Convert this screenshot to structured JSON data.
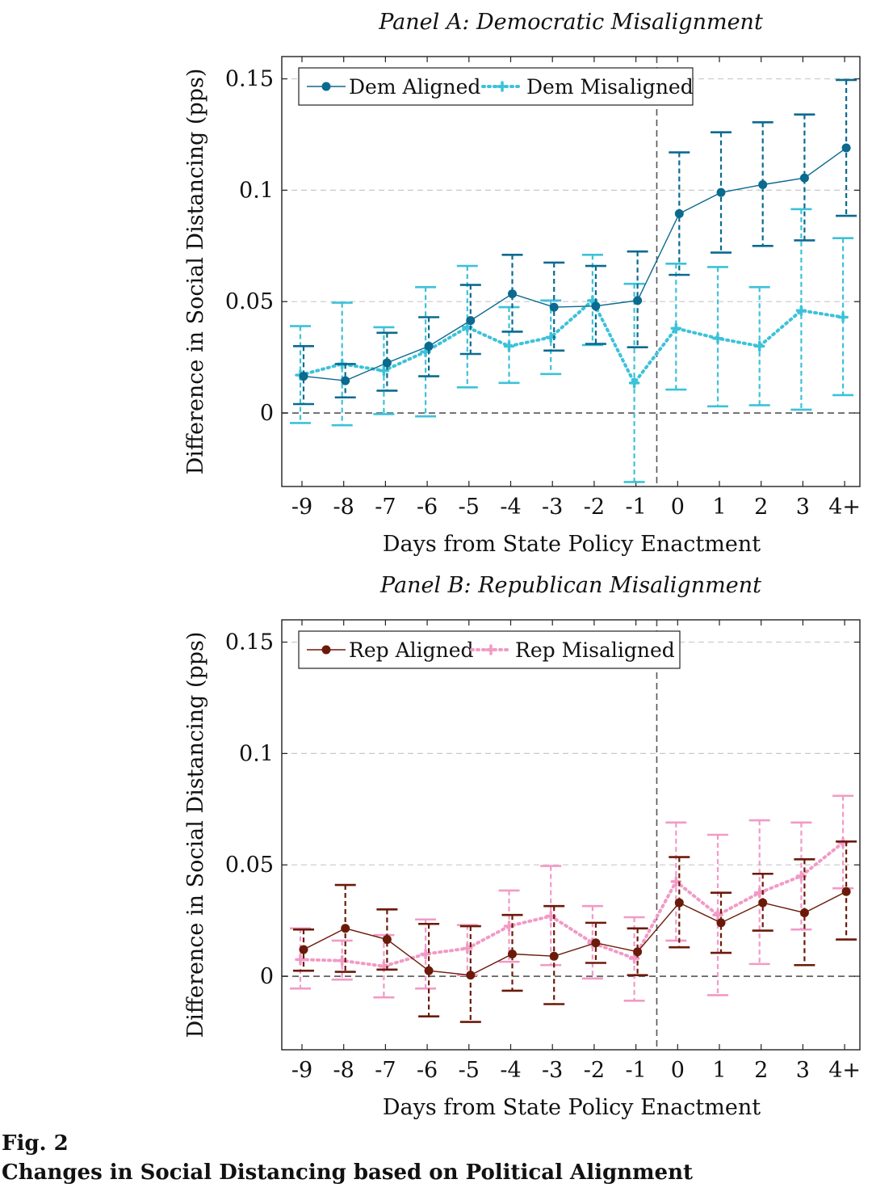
{
  "figure": {
    "label": "Fig. 2",
    "title": "Changes in Social Distancing based on Political Alignment"
  },
  "chart_data": [
    {
      "type": "line",
      "title": "Panel A: Democratic Misalignment",
      "xlabel": "Days from State Policy Enactment",
      "ylabel": "Difference in Social Distancing (pps)",
      "categories": [
        "-9",
        "-8",
        "-7",
        "-6",
        "-5",
        "-4",
        "-3",
        "-2",
        "-1",
        "0",
        "1",
        "2",
        "3",
        "4+"
      ],
      "yticks": [
        "0",
        "0.05",
        "0.1",
        "0.15"
      ],
      "ylim": [
        -0.033,
        0.16
      ],
      "grid": "horizontal dashed",
      "legend_position": "top-left",
      "reference_lines": {
        "y": 0,
        "x_between": [
          "-1",
          "0"
        ]
      },
      "colors": {
        "aligned": "#0b6a8f",
        "misaligned": "#3cc2d9"
      },
      "series": [
        {
          "name": "Dem Aligned",
          "style": "solid",
          "values": [
            0.0165,
            0.0145,
            0.0225,
            0.03,
            0.0415,
            0.0535,
            0.0475,
            0.048,
            0.0505,
            0.0895,
            0.099,
            0.1025,
            0.1055,
            0.119
          ],
          "lower": [
            0.004,
            0.007,
            0.01,
            0.0165,
            0.0265,
            0.0365,
            0.028,
            0.031,
            0.0295,
            0.062,
            0.072,
            0.075,
            0.0775,
            0.0885
          ],
          "upper": [
            0.03,
            0.022,
            0.036,
            0.043,
            0.0575,
            0.071,
            0.0675,
            0.066,
            0.0725,
            0.117,
            0.126,
            0.1305,
            0.134,
            0.1495
          ]
        },
        {
          "name": "Dem Misaligned",
          "style": "dotted",
          "values": [
            0.017,
            0.022,
            0.019,
            0.0275,
            0.0385,
            0.03,
            0.034,
            0.0505,
            0.0135,
            0.038,
            0.0335,
            0.03,
            0.046,
            0.043
          ],
          "lower": [
            -0.0045,
            -0.0055,
            -0.0005,
            -0.0015,
            0.0115,
            0.0135,
            0.0175,
            0.0305,
            -0.031,
            0.0105,
            0.003,
            0.0035,
            0.0015,
            0.008
          ],
          "upper": [
            0.039,
            0.0495,
            0.0385,
            0.0565,
            0.066,
            0.0475,
            0.0505,
            0.071,
            0.058,
            0.067,
            0.0655,
            0.0565,
            0.0915,
            0.0785
          ]
        }
      ]
    },
    {
      "type": "line",
      "title": "Panel B: Republican Misalignment",
      "xlabel": "Days from State Policy Enactment",
      "ylabel": "Difference in Social Distancing (pps)",
      "categories": [
        "-9",
        "-8",
        "-7",
        "-6",
        "-5",
        "-4",
        "-3",
        "-2",
        "-1",
        "0",
        "1",
        "2",
        "3",
        "4+"
      ],
      "yticks": [
        "0",
        "0.05",
        "0.1",
        "0.15"
      ],
      "ylim": [
        -0.033,
        0.16
      ],
      "grid": "horizontal dashed",
      "legend_position": "top-left",
      "reference_lines": {
        "y": 0,
        "x_between": [
          "-1",
          "0"
        ]
      },
      "colors": {
        "aligned": "#6b1a0a",
        "misaligned": "#f29ac6"
      },
      "series": [
        {
          "name": "Rep Aligned",
          "style": "solid",
          "values": [
            0.012,
            0.0215,
            0.0165,
            0.0025,
            0.0005,
            0.01,
            0.009,
            0.015,
            0.011,
            0.033,
            0.024,
            0.033,
            0.0285,
            0.038
          ],
          "lower": [
            0.0025,
            0.002,
            0.003,
            -0.018,
            -0.0205,
            -0.0065,
            -0.0125,
            0.006,
            0.0005,
            0.013,
            0.0105,
            0.0205,
            0.005,
            0.0165
          ],
          "upper": [
            0.021,
            0.041,
            0.03,
            0.0235,
            0.0225,
            0.0275,
            0.0315,
            0.024,
            0.0215,
            0.0535,
            0.0375,
            0.046,
            0.0525,
            0.0605
          ]
        },
        {
          "name": "Rep Misaligned",
          "style": "dotted",
          "values": [
            0.0075,
            0.007,
            0.0045,
            0.01,
            0.0125,
            0.0225,
            0.027,
            0.015,
            0.008,
            0.0425,
            0.0275,
            0.0375,
            0.045,
            0.06
          ],
          "lower": [
            -0.0055,
            -0.0015,
            -0.0095,
            -0.0055,
            0.0005,
            0.0065,
            0.005,
            -0.001,
            -0.011,
            0.016,
            -0.0085,
            0.0055,
            0.021,
            0.0395
          ],
          "upper": [
            0.0215,
            0.016,
            0.0185,
            0.0255,
            0.023,
            0.0385,
            0.0495,
            0.0315,
            0.0265,
            0.069,
            0.0635,
            0.07,
            0.069,
            0.081
          ]
        }
      ]
    }
  ]
}
